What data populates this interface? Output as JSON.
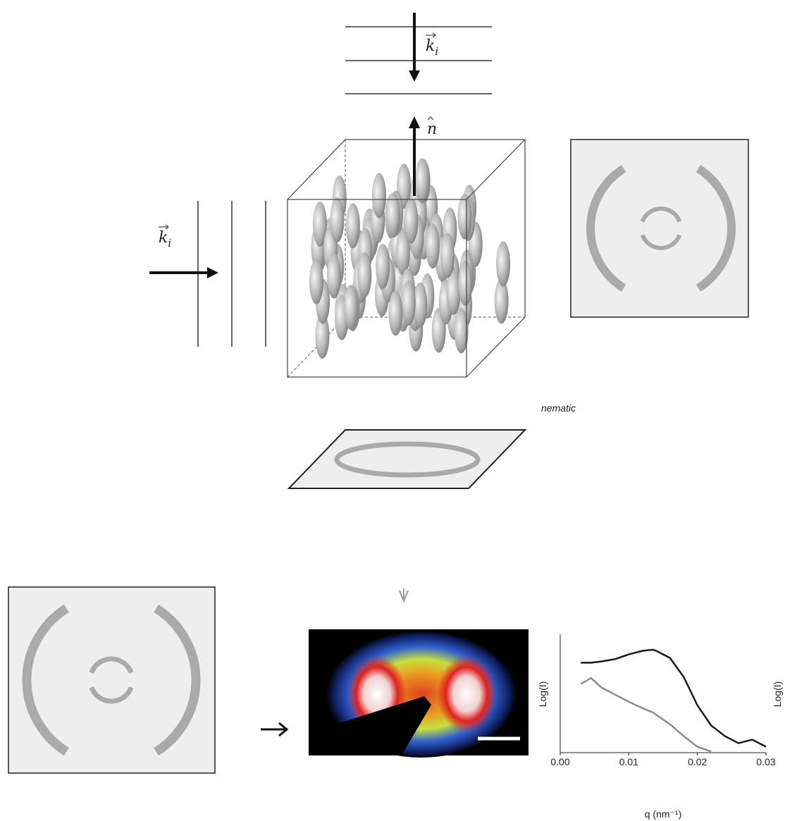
{
  "beam_top": {
    "symbol": "k",
    "subscript": "i"
  },
  "beam_left": {
    "symbol": "k",
    "subscript": "i"
  },
  "director": "n",
  "phase_label": "nematic",
  "side_label": "Log(I)",
  "chart_data": {
    "type": "line",
    "xlabel": "q (nm⁻¹)",
    "ylabel": "Log(I)",
    "x": [
      0.003,
      0.0045,
      0.006,
      0.008,
      0.01,
      0.012,
      0.0135,
      0.014,
      0.016,
      0.018,
      0.02,
      0.022,
      0.024,
      0.026,
      0.028,
      0.03
    ],
    "series": [
      {
        "color": "#1a1a1a",
        "values": [
          0.76,
          0.76,
          0.77,
          0.79,
          0.83,
          0.86,
          0.87,
          0.86,
          0.8,
          0.64,
          0.4,
          0.23,
          0.14,
          0.08,
          0.11,
          0.05
        ]
      },
      {
        "color": "#8c8c8c",
        "values": [
          0.58,
          0.63,
          0.55,
          0.49,
          0.43,
          0.375,
          0.34,
          0.32,
          0.24,
          0.14,
          0.05,
          0.01,
          null,
          null,
          null,
          null
        ]
      }
    ],
    "xlim": [
      0,
      0.03
    ],
    "ylim": [
      0,
      1
    ],
    "xticks": [
      {
        "value": 0,
        "label": "0.00"
      },
      0.01,
      0.02,
      0.03
    ]
  }
}
